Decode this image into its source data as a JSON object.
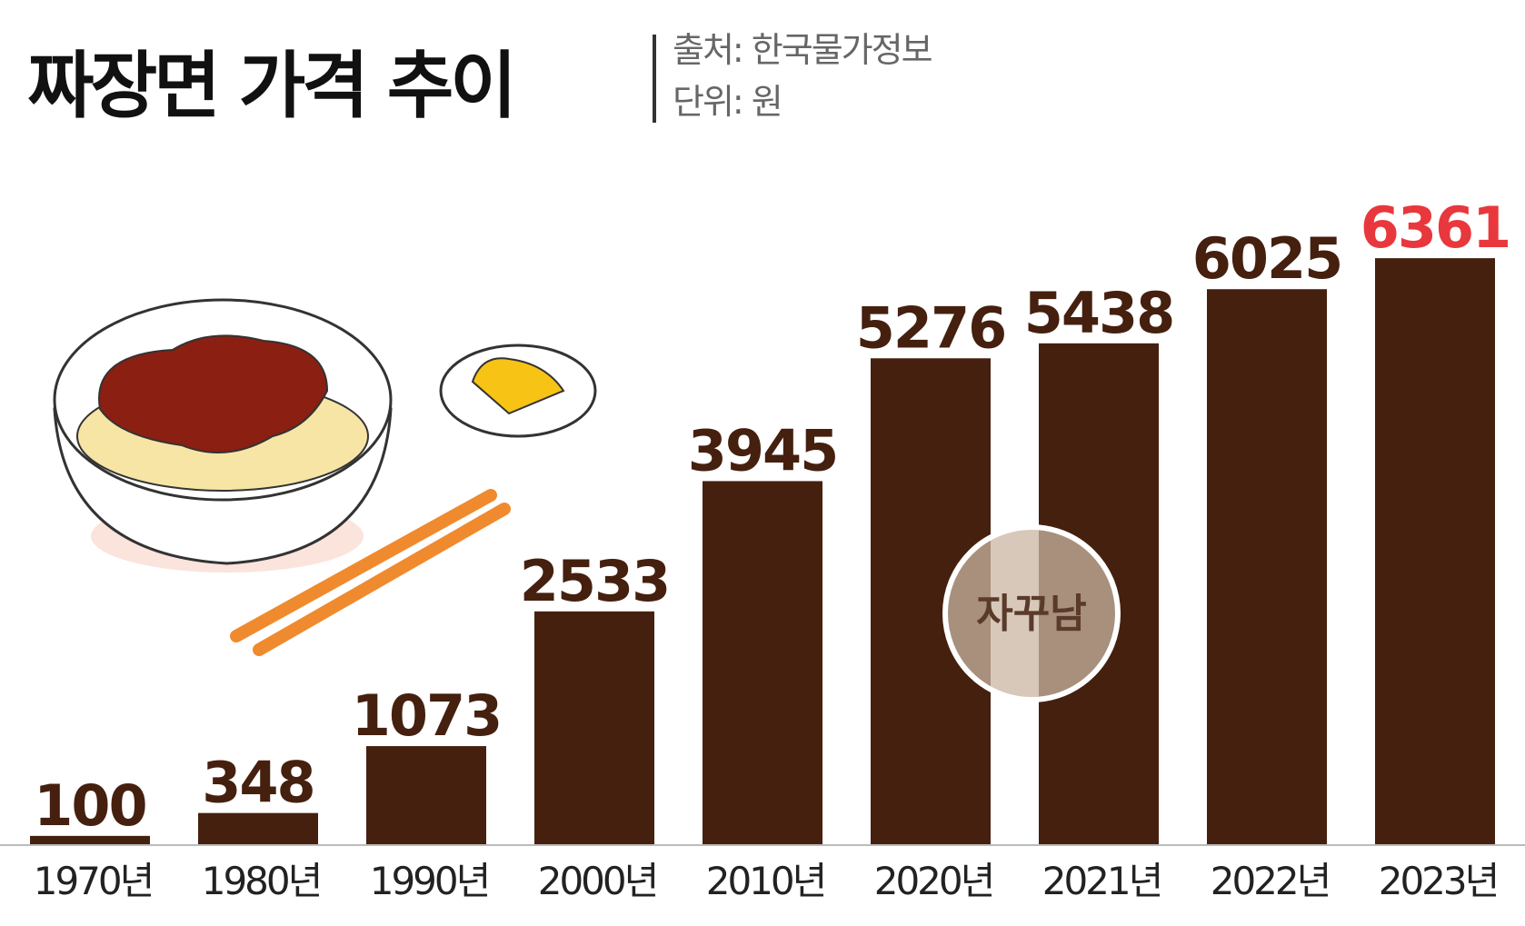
{
  "chart_data": {
    "type": "bar",
    "title": "짜장면 가격 추이",
    "source": "출처: 한국물가정보",
    "unit": "단위: 원",
    "watermark": "자꾸남",
    "categories": [
      "1970년",
      "1980년",
      "1990년",
      "2000년",
      "2010년",
      "2020년",
      "2021년",
      "2022년",
      "2023년"
    ],
    "values": [
      100,
      348,
      1073,
      2533,
      3945,
      5276,
      5438,
      6025,
      6361
    ],
    "color": "#45200f",
    "value_label_colors": [
      "#45200f",
      "#45200f",
      "#45200f",
      "#45200f",
      "#45200f",
      "#45200f",
      "#45200f",
      "#45200f",
      "#e8383d"
    ],
    "ylim": [
      0,
      6500
    ],
    "grid": false
  }
}
